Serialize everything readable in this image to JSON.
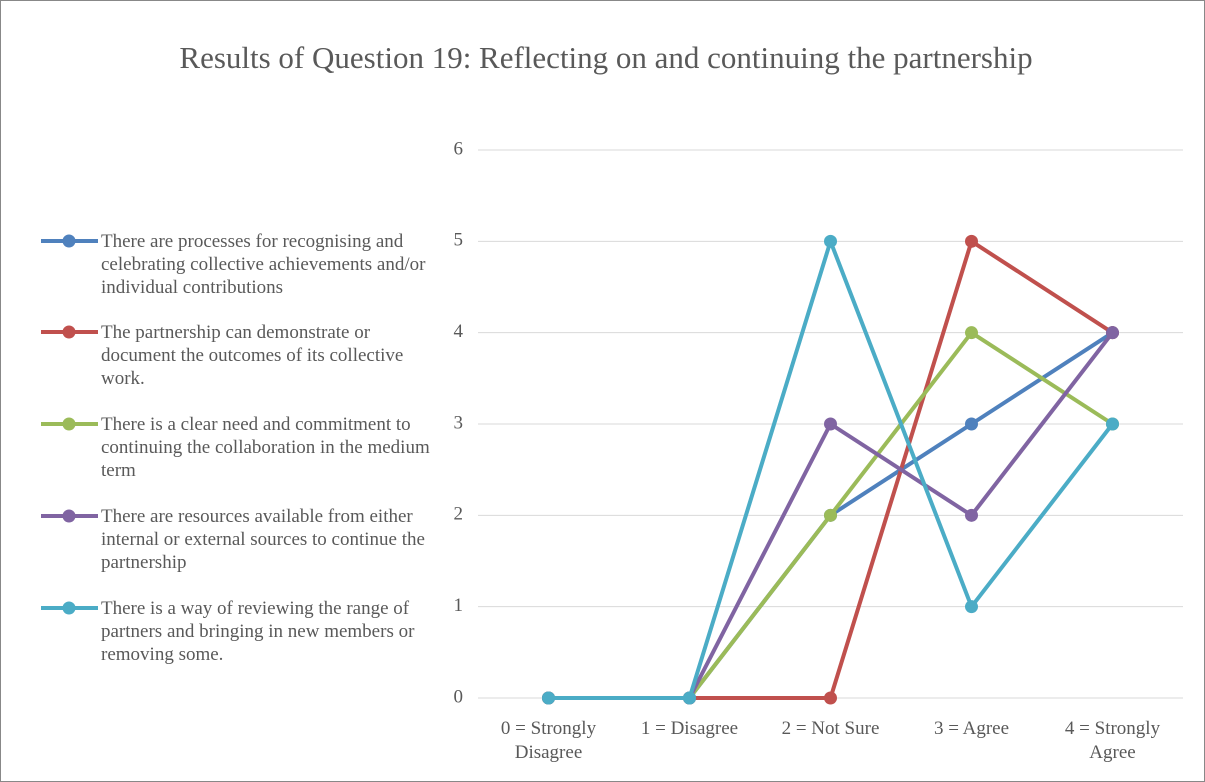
{
  "chart_data": {
    "type": "line",
    "title": "Results of Question 19: Reflecting on and continuing the partnership",
    "categories": [
      "0 = Strongly Disagree",
      "1 = Disagree",
      "2 = Not Sure",
      "3 = Agree",
      "4 = Strongly Agree"
    ],
    "series": [
      {
        "name": "There are processes for recognising and celebrating collective achievements and/or individual contributions",
        "color": "#4f81bd",
        "values": [
          0,
          0,
          2,
          3,
          4
        ]
      },
      {
        "name": "The partnership can demonstrate or document the outcomes of its collective work.",
        "color": "#c0504d",
        "values": [
          0,
          0,
          0,
          5,
          4
        ]
      },
      {
        "name": "There is a clear need and commitment to continuing the collaboration in the medium term",
        "color": "#9bbb59",
        "values": [
          0,
          0,
          2,
          4,
          3
        ]
      },
      {
        "name": "There are resources available from either internal or external sources to continue the partnership",
        "color": "#8064a2",
        "values": [
          0,
          0,
          3,
          2,
          4
        ]
      },
      {
        "name": "There is a way of reviewing the range of partners and bringing in new members or removing some.",
        "color": "#4bacc6",
        "values": [
          0,
          0,
          5,
          1,
          3
        ]
      }
    ],
    "ylim": [
      0,
      6
    ],
    "yticks": [
      0,
      1,
      2,
      3,
      4,
      5,
      6
    ],
    "grid": true,
    "legend": "left"
  }
}
